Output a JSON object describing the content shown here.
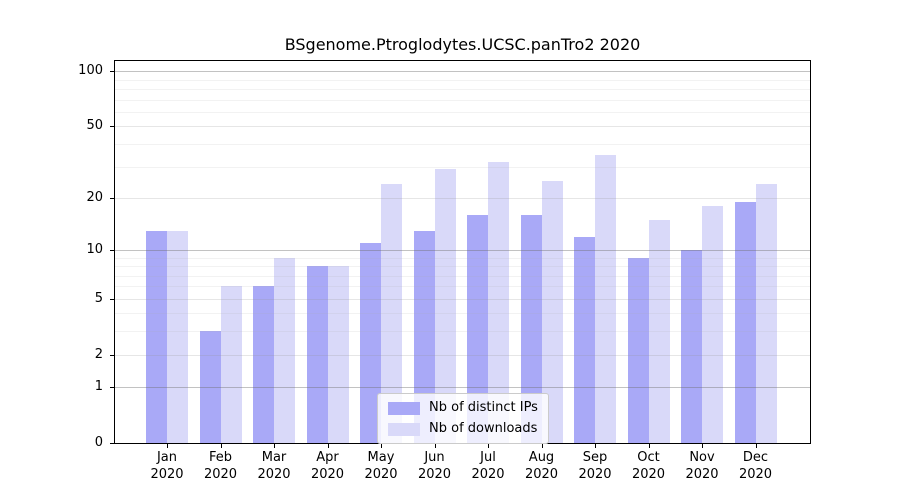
{
  "chart_data": {
    "type": "bar",
    "title": "BSgenome.Ptroglodytes.UCSC.panTro2 2020",
    "xlabel": "",
    "ylabel": "",
    "categories": [
      "Jan 2020",
      "Feb 2020",
      "Mar 2020",
      "Apr 2020",
      "May 2020",
      "Jun 2020",
      "Jul 2020",
      "Aug 2020",
      "Sep 2020",
      "Oct 2020",
      "Nov 2020",
      "Dec 2020"
    ],
    "series": [
      {
        "name": "Nb of distinct IPs",
        "color": "#a9a9f7",
        "values": [
          13,
          3,
          6,
          8,
          11,
          13,
          16,
          16,
          12,
          9,
          10,
          19
        ]
      },
      {
        "name": "Nb of downloads",
        "color": "#d9d9f9",
        "values": [
          13,
          6,
          9,
          8,
          24,
          29,
          32,
          25,
          35,
          15,
          18,
          24
        ]
      }
    ],
    "y_scale": "log1p",
    "y_ticks": [
      0,
      1,
      2,
      5,
      10,
      20,
      50,
      100
    ],
    "y_max": 114,
    "y_gridlines": {
      "decade": [
        1,
        10,
        100
      ],
      "mid": [
        2,
        5,
        20,
        50
      ],
      "minor": [
        3,
        4,
        6,
        7,
        8,
        9,
        30,
        40,
        60,
        70,
        80,
        90
      ]
    },
    "grid_colors": {
      "decade": "rgba(110,110,110,0.42)",
      "mid": "rgba(150,150,150,0.24)",
      "minor": "rgba(175,175,175,0.16)"
    },
    "legend_position": "inside lower-center",
    "grid": "on"
  }
}
